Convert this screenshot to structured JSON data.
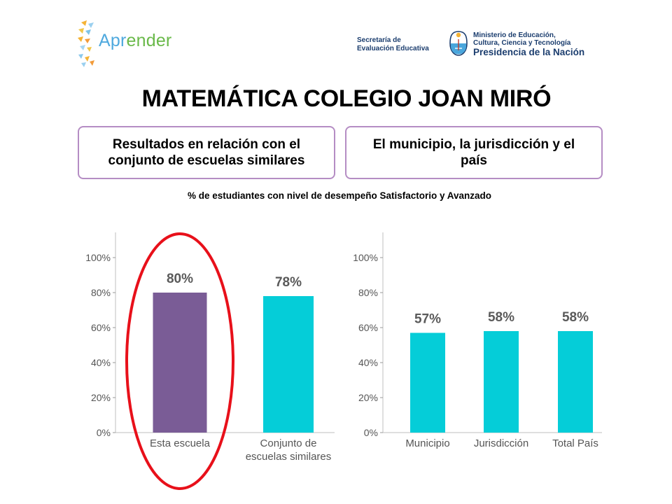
{
  "header": {
    "logo_text_a": "Apr",
    "logo_text_b": "ender",
    "secretaria_line1": "Secretaría de",
    "secretaria_line2": "Evaluación Educativa",
    "ministerio_line1": "Ministerio de Educación,",
    "ministerio_line2": "Cultura, Ciencia y Tecnología",
    "ministerio_line3": "Presidencia de la Nación"
  },
  "page_title": "MATEMÁTICA COLEGIO JOAN MIRÓ",
  "boxes": {
    "left": "Resultados en relación con el conjunto de escuelas similares",
    "right": "El municipio, la jurisdicción y el país"
  },
  "subtitle": "% de estudiantes  con nivel de desempeño  Satisfactorio  y Avanzado",
  "colors": {
    "purple": "#7a5c96",
    "cyan": "#05cdd8",
    "highlight": "#e8101a",
    "box_border": "#b58dc4",
    "brand_blue": "#1b3d6e"
  },
  "chart_data": [
    {
      "type": "bar",
      "categories": [
        "Esta escuela",
        "Conjunto de\nescuelas similares"
      ],
      "values": [
        80,
        78
      ],
      "data_labels": [
        "80%",
        "78%"
      ],
      "bar_colors": [
        "#7a5c96",
        "#05cdd8"
      ],
      "y_ticks": [
        "0%",
        "20%",
        "40%",
        "60%",
        "80%",
        "100%"
      ],
      "ylim": [
        0,
        100
      ],
      "highlight": "Esta escuela"
    },
    {
      "type": "bar",
      "categories": [
        "Municipio",
        "Jurisdicción",
        "Total País"
      ],
      "values": [
        57,
        58,
        58
      ],
      "data_labels": [
        "57%",
        "58%",
        "58%"
      ],
      "bar_colors": [
        "#05cdd8",
        "#05cdd8",
        "#05cdd8"
      ],
      "y_ticks": [
        "0%",
        "20%",
        "40%",
        "60%",
        "80%",
        "100%"
      ],
      "ylim": [
        0,
        100
      ]
    }
  ]
}
